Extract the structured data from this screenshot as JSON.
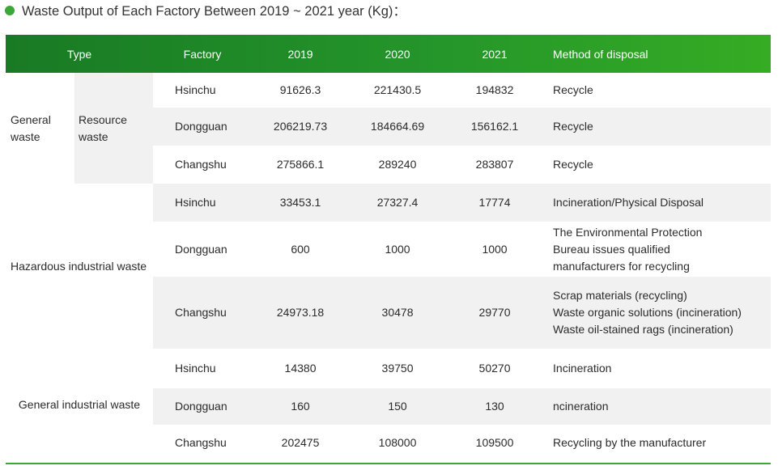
{
  "title": "Waste Output of Each Factory Between 2019 ~ 2021 year (Kg)：",
  "headers": {
    "type": "Type",
    "factory": "Factory",
    "y2019": "2019",
    "y2020": "2020",
    "y2021": "2021",
    "method": "Method of disposal"
  },
  "groups": {
    "general_waste": "General waste",
    "resource_waste": "Resource waste",
    "hazardous": "Hazardous industrial waste",
    "general_industrial": "General industrial waste"
  },
  "rows": [
    {
      "factory": "Hsinchu",
      "v2019": "91626.3",
      "v2020": "221430.5",
      "v2021": "194832",
      "method": [
        "Recycle"
      ]
    },
    {
      "factory": "Dongguan",
      "v2019": "206219.73",
      "v2020": "184664.69",
      "v2021": "156162.1",
      "method": [
        "Recycle"
      ]
    },
    {
      "factory": "Changshu",
      "v2019": "275866.1",
      "v2020": "289240",
      "v2021": "283807",
      "method": [
        "Recycle"
      ]
    },
    {
      "factory": "Hsinchu",
      "v2019": "33453.1",
      "v2020": "27327.4",
      "v2021": "17774",
      "method": [
        "Incineration/Physical Disposal"
      ]
    },
    {
      "factory": "Dongguan",
      "v2019": "600",
      "v2020": "1000",
      "v2021": "1000",
      "method": [
        "The Environmental Protection",
        "Bureau issues qualified",
        "manufacturers for recycling"
      ]
    },
    {
      "factory": "Changshu",
      "v2019": "24973.18",
      "v2020": "30478",
      "v2021": "29770",
      "method": [
        "Scrap materials (recycling)",
        "Waste organic solutions (incineration)",
        "Waste oil-stained rags (incineration)"
      ]
    },
    {
      "factory": "Hsinchu",
      "v2019": "14380",
      "v2020": "39750",
      "v2021": "50270",
      "method": [
        "Incineration"
      ]
    },
    {
      "factory": "Dongguan",
      "v2019": "160",
      "v2020": "150",
      "v2021": "130",
      "method": [
        "ncineration"
      ]
    },
    {
      "factory": "Changshu",
      "v2019": "202475",
      "v2020": "108000",
      "v2021": "109500",
      "method": [
        "Recycling by the manufacturer"
      ]
    }
  ],
  "colors": {
    "accent": "#3aa838",
    "header_start": "#197a24",
    "header_end": "#36ac24",
    "row_grey": "#f1f1f1"
  }
}
